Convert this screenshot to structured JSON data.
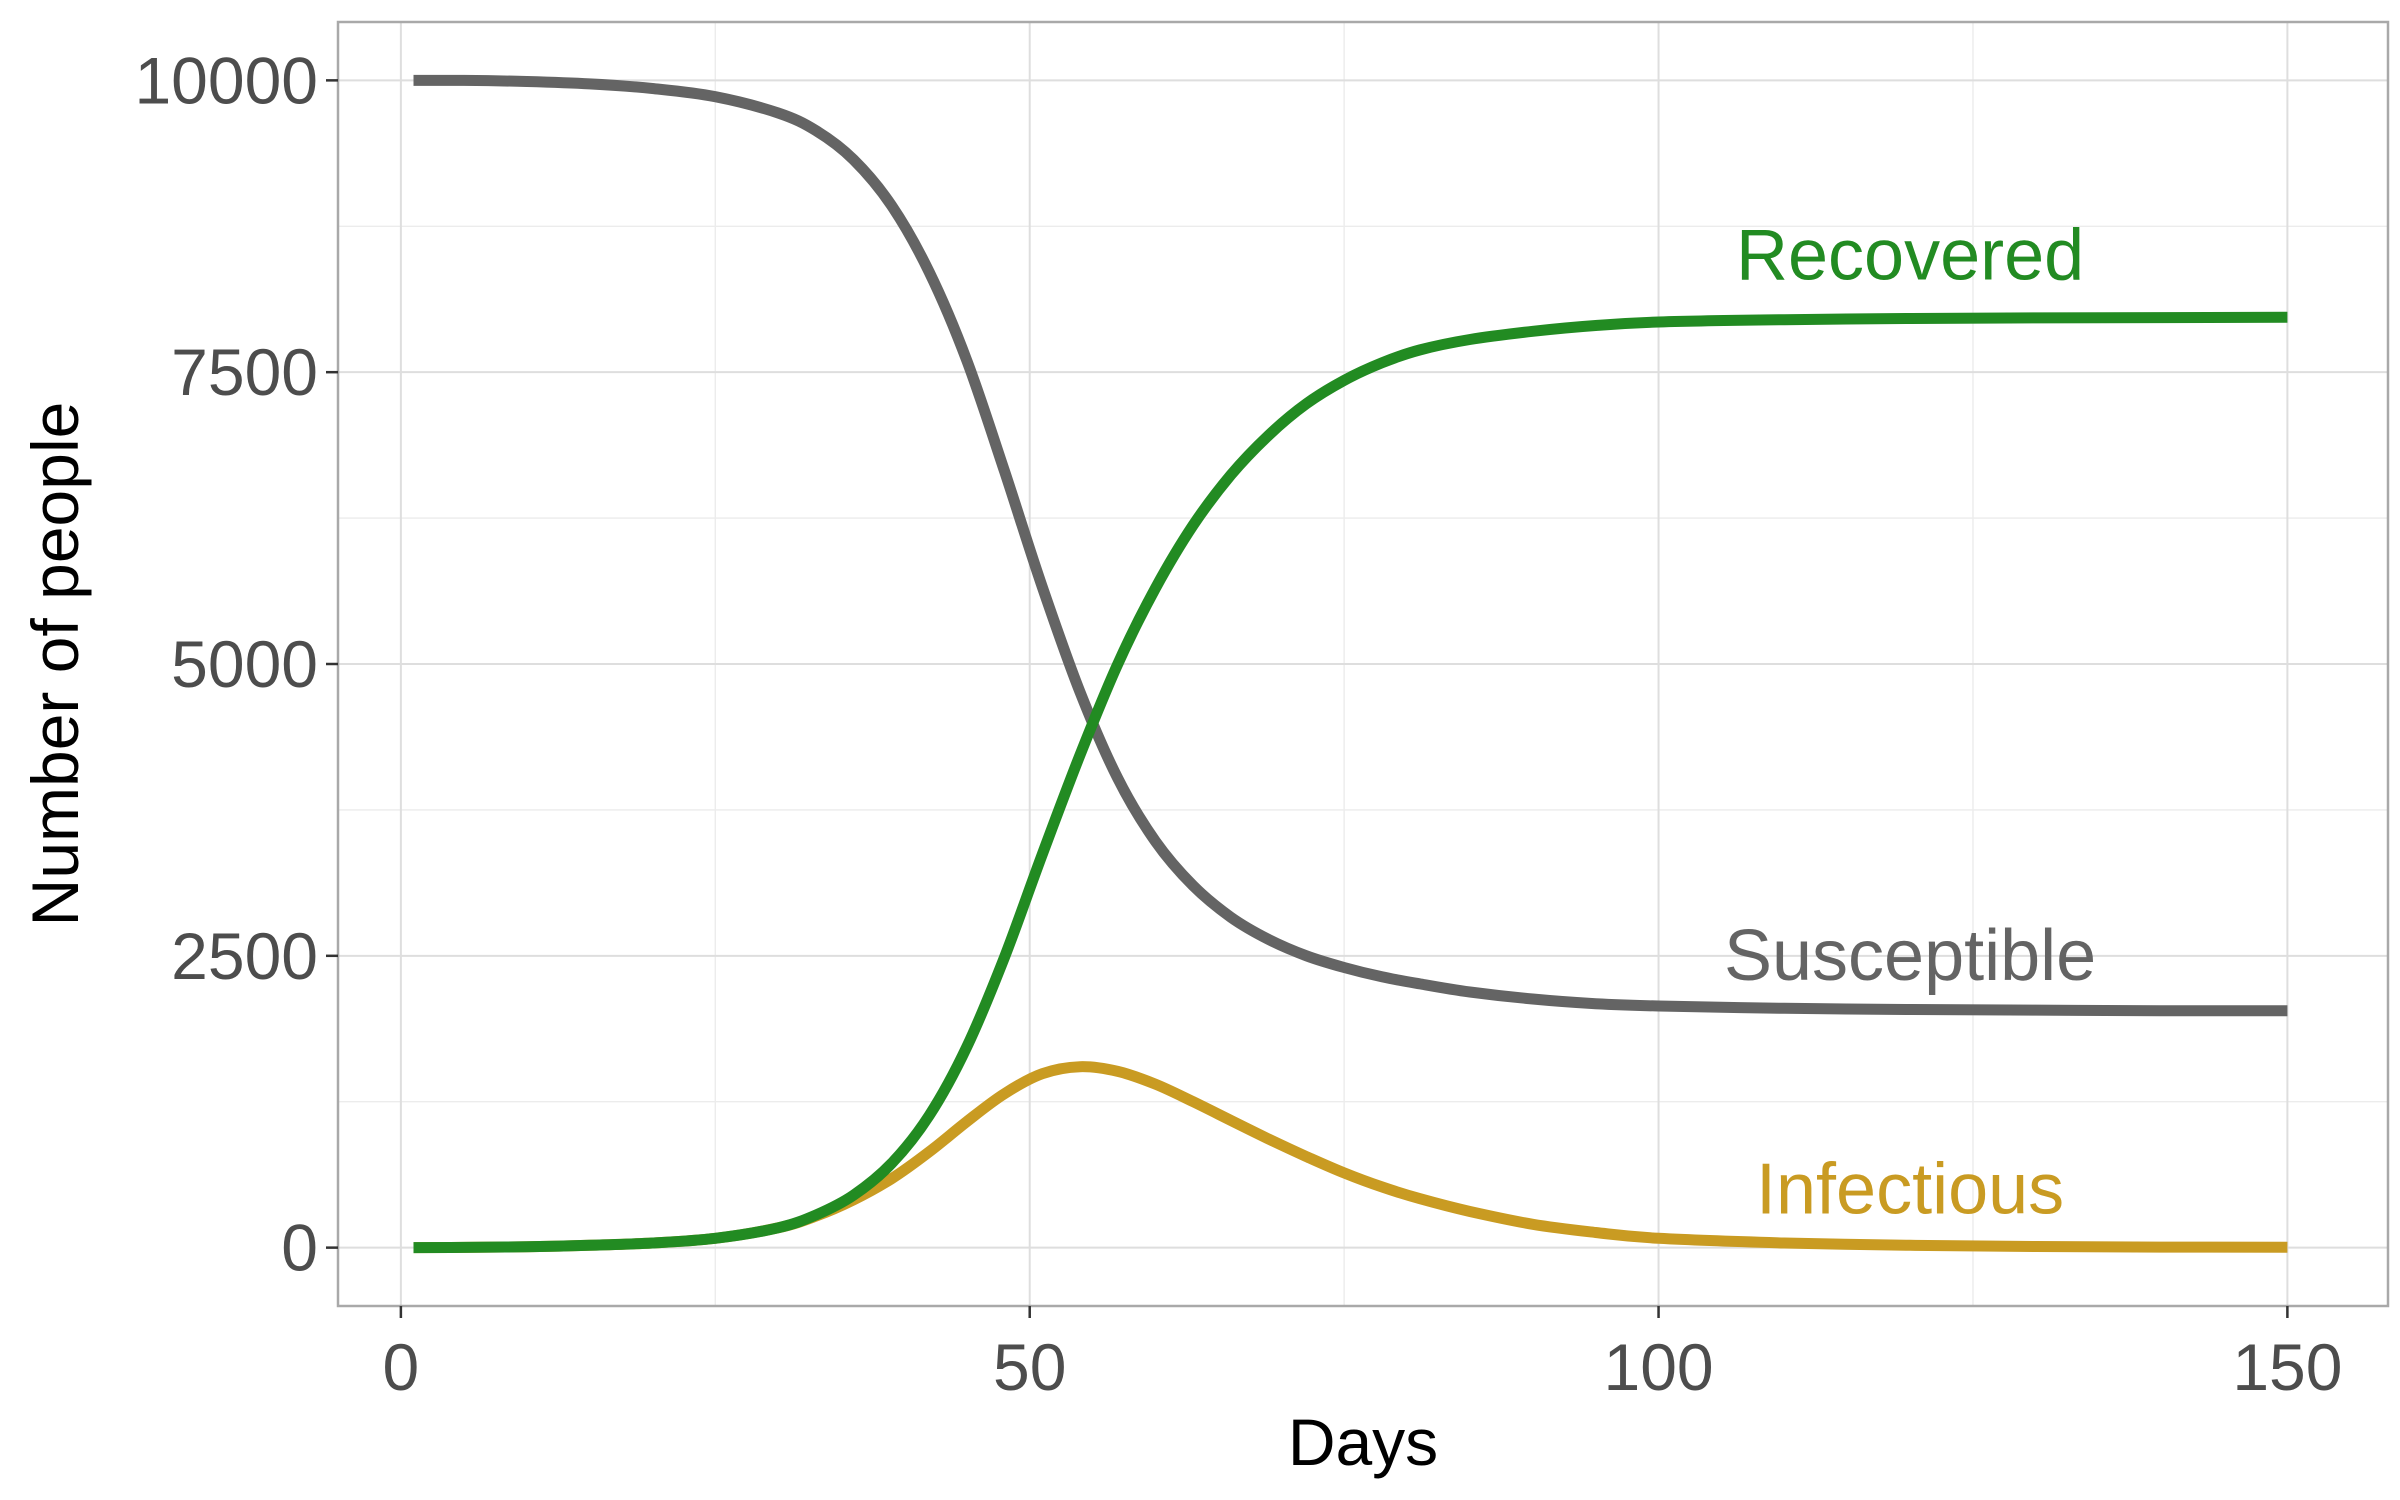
{
  "chart_data": {
    "type": "line",
    "title": "",
    "xlabel": "Days",
    "ylabel": "Number of people",
    "xlim": [
      -5,
      158
    ],
    "ylim": [
      -500,
      10500
    ],
    "x_ticks": [
      0,
      50,
      100,
      150
    ],
    "y_ticks": [
      0,
      2500,
      5000,
      7500,
      10000
    ],
    "grid": true,
    "legend": "none (direct labels)",
    "x": [
      1,
      5,
      10,
      15,
      20,
      25,
      30,
      33,
      36,
      39,
      42,
      45,
      48,
      51,
      54,
      57,
      60,
      63,
      66,
      69,
      72,
      75,
      78,
      81,
      85,
      90,
      95,
      100,
      110,
      120,
      130,
      140,
      150
    ],
    "series": [
      {
        "name": "Susceptible",
        "color": "#646464",
        "values": [
          10000,
          10000,
          9990,
          9970,
          9930,
          9860,
          9720,
          9570,
          9320,
          8930,
          8360,
          7600,
          6650,
          5660,
          4760,
          4020,
          3480,
          3100,
          2830,
          2640,
          2500,
          2400,
          2320,
          2260,
          2190,
          2130,
          2090,
          2070,
          2050,
          2040,
          2035,
          2030,
          2030
        ]
      },
      {
        "name": "Infectious",
        "color": "#C99B22",
        "values": [
          0,
          2,
          8,
          20,
          40,
          80,
          170,
          270,
          410,
          590,
          820,
          1080,
          1320,
          1490,
          1550,
          1510,
          1400,
          1250,
          1090,
          930,
          780,
          640,
          520,
          420,
          310,
          200,
          130,
          80,
          40,
          20,
          10,
          5,
          3
        ]
      },
      {
        "name": "Recovered",
        "color": "#228B22",
        "values": [
          0,
          2,
          8,
          20,
          40,
          80,
          170,
          280,
          450,
          720,
          1130,
          1720,
          2490,
          3370,
          4220,
          5000,
          5650,
          6190,
          6620,
          6960,
          7230,
          7430,
          7580,
          7690,
          7780,
          7850,
          7900,
          7930,
          7950,
          7960,
          7965,
          7968,
          7970
        ]
      }
    ],
    "series_labels": [
      {
        "text": "Recovered",
        "color": "#228B22",
        "x": 120,
        "y": 8500
      },
      {
        "text": "Susceptible",
        "color": "#646464",
        "x": 120,
        "y": 2500
      },
      {
        "text": "Infectious",
        "color": "#C99B22",
        "x": 120,
        "y": 500
      }
    ]
  }
}
